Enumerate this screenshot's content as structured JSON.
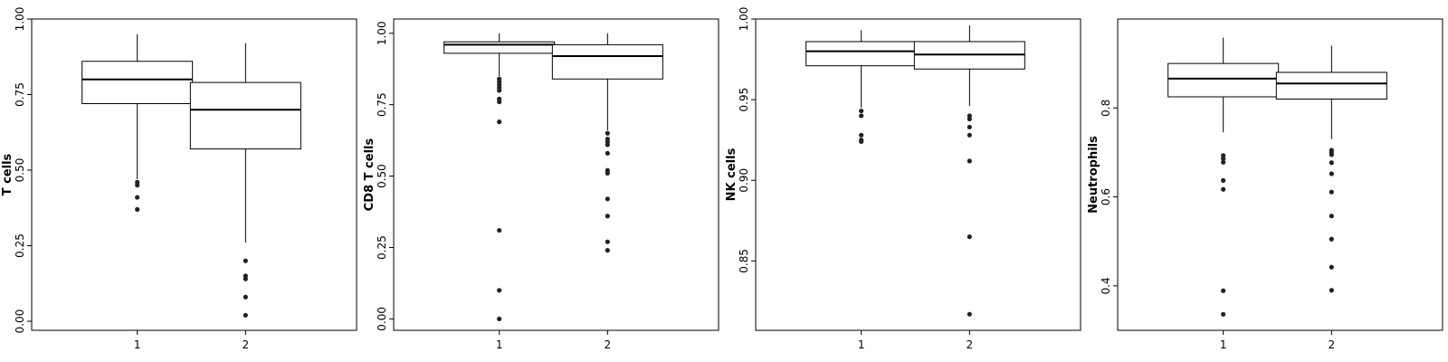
{
  "chart_data": [
    {
      "type": "box",
      "ylabel": "T cells",
      "categories": [
        "1",
        "2"
      ],
      "yticks": [
        "0.00",
        "0.25",
        "0.50",
        "0.75",
        "1.00"
      ],
      "ytick_values": [
        0,
        0.25,
        0.5,
        0.75,
        1.0
      ],
      "ylim": [
        -0.03,
        1.0
      ],
      "grid": false,
      "boxes": [
        {
          "category": "1",
          "q1": 0.72,
          "median": 0.8,
          "q3": 0.86,
          "whisker_low": 0.47,
          "whisker_high": 0.95,
          "outliers": [
            0.46,
            0.45,
            0.41,
            0.37
          ]
        },
        {
          "category": "2",
          "q1": 0.57,
          "median": 0.7,
          "q3": 0.79,
          "whisker_low": 0.26,
          "whisker_high": 0.92,
          "outliers": [
            0.2,
            0.15,
            0.14,
            0.08,
            0.02
          ]
        }
      ]
    },
    {
      "type": "box",
      "ylabel": "CD8 T cells",
      "categories": [
        "1",
        "2"
      ],
      "yticks": [
        "0.00",
        "0.25",
        "0.50",
        "0.75",
        "1.00"
      ],
      "ytick_values": [
        0,
        0.25,
        0.5,
        0.75,
        1.0
      ],
      "ylim": [
        -0.04,
        1.05
      ],
      "grid": false,
      "boxes": [
        {
          "category": "1",
          "q1": 0.93,
          "median": 0.96,
          "q3": 0.97,
          "whisker_low": 0.85,
          "whisker_high": 1.0,
          "outliers": [
            0.84,
            0.83,
            0.82,
            0.81,
            0.8,
            0.77,
            0.76,
            0.69,
            0.31,
            0.1,
            0.0
          ]
        },
        {
          "category": "2",
          "q1": 0.84,
          "median": 0.92,
          "q3": 0.96,
          "whisker_low": 0.66,
          "whisker_high": 1.0,
          "outliers": [
            0.65,
            0.63,
            0.62,
            0.61,
            0.58,
            0.52,
            0.51,
            0.42,
            0.36,
            0.27,
            0.24
          ]
        }
      ]
    },
    {
      "type": "box",
      "ylabel": "NK cells",
      "categories": [
        "1",
        "2"
      ],
      "yticks": [
        "0.85",
        "0.90",
        "0.95",
        "1.00"
      ],
      "ytick_values": [
        0.85,
        0.9,
        0.95,
        1.0
      ],
      "ylim": [
        0.807,
        1.0
      ],
      "grid": false,
      "boxes": [
        {
          "category": "1",
          "q1": 0.971,
          "median": 0.98,
          "q3": 0.986,
          "whisker_low": 0.945,
          "whisker_high": 0.993,
          "outliers": [
            0.943,
            0.94,
            0.928,
            0.925,
            0.924
          ]
        },
        {
          "category": "2",
          "q1": 0.969,
          "median": 0.978,
          "q3": 0.986,
          "whisker_low": 0.946,
          "whisker_high": 0.996,
          "outliers": [
            0.94,
            0.938,
            0.933,
            0.928,
            0.912,
            0.865,
            0.817
          ]
        }
      ]
    },
    {
      "type": "box",
      "ylabel": "Neutrophils",
      "categories": [
        "1",
        "2"
      ],
      "yticks": [
        "0.4",
        "0.6",
        "0.8"
      ],
      "ytick_values": [
        0.4,
        0.6,
        0.8
      ],
      "ylim": [
        0.3,
        1.0
      ],
      "grid": false,
      "boxes": [
        {
          "category": "1",
          "q1": 0.825,
          "median": 0.866,
          "q3": 0.9,
          "whisker_low": 0.745,
          "whisker_high": 0.958,
          "outliers": [
            0.693,
            0.686,
            0.678,
            0.637,
            0.617,
            0.389,
            0.336
          ]
        },
        {
          "category": "2",
          "q1": 0.82,
          "median": 0.855,
          "q3": 0.88,
          "whisker_low": 0.73,
          "whisker_high": 0.94,
          "outliers": [
            0.705,
            0.7,
            0.695,
            0.677,
            0.652,
            0.611,
            0.557,
            0.505,
            0.442,
            0.39
          ]
        }
      ]
    }
  ]
}
